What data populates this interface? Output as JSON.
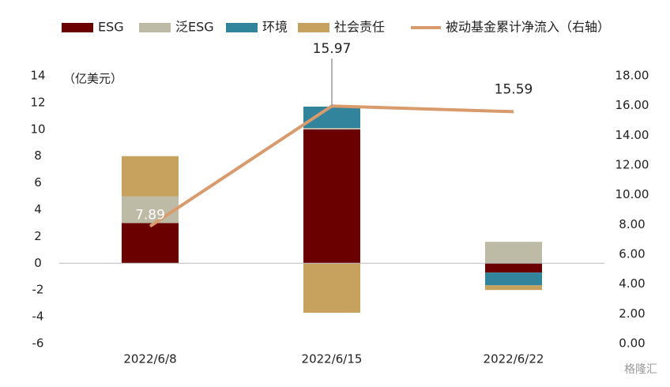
{
  "chart_data": {
    "type": "bar",
    "y_axis_label": "（亿美元）",
    "categories": [
      "2022/6/8",
      "2022/6/15",
      "2022/6/22"
    ],
    "series": [
      {
        "name": "ESG",
        "color": "#6b0000",
        "values": [
          3.0,
          10.0,
          -0.7
        ]
      },
      {
        "name": "泛ESG",
        "color": "#bdbaa6",
        "values": [
          2.0,
          0.1,
          1.6
        ]
      },
      {
        "name": "环境",
        "color": "#31849b",
        "values": [
          0,
          1.6,
          -0.95
        ]
      },
      {
        "name": "社会责任",
        "color": "#c6a25e",
        "values": [
          3.0,
          -3.7,
          -0.35
        ]
      },
      {
        "name": "被动基金累计净流入（右轴）",
        "color": "#d99a6c",
        "type": "line",
        "axis": "y2",
        "values": [
          7.89,
          15.97,
          15.59
        ]
      }
    ],
    "ylim": [
      -6,
      14
    ],
    "yticks": [
      -6,
      -4,
      -2,
      0,
      2,
      4,
      6,
      8,
      10,
      12,
      14
    ],
    "y2lim": [
      0,
      18
    ],
    "y2ticks": [
      {
        "value": 0,
        "label": "0.00"
      },
      {
        "value": 2,
        "label": "2.00"
      },
      {
        "value": 4,
        "label": "4.00"
      },
      {
        "value": 6,
        "label": "6.00"
      },
      {
        "value": 8,
        "label": "8.00"
      },
      {
        "value": 10,
        "label": "10.00"
      },
      {
        "value": 12,
        "label": "12.00"
      },
      {
        "value": 14,
        "label": "14.00"
      },
      {
        "value": 16,
        "label": "16.00"
      },
      {
        "value": 18,
        "label": "18.00"
      }
    ],
    "grid": false,
    "watermark": "格隆汇"
  }
}
